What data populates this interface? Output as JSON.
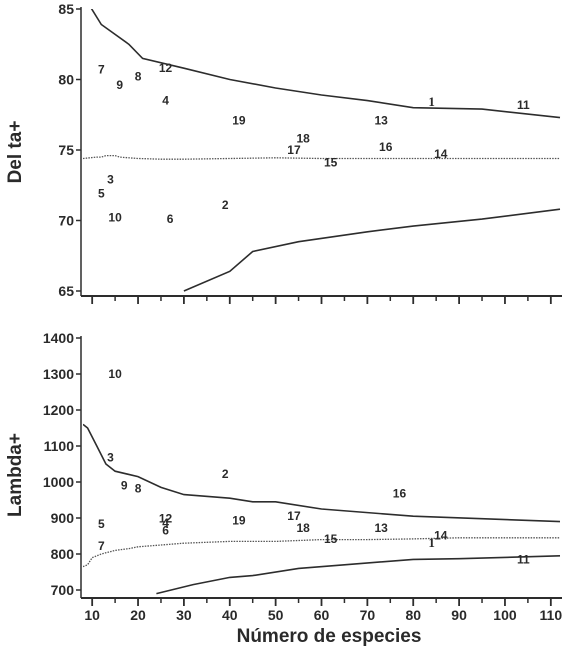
{
  "chart_data": [
    {
      "type": "line",
      "title": "",
      "ylabel": "Del ta+",
      "xlabel": "",
      "xlim": [
        8,
        112
      ],
      "ylim": [
        65,
        86
      ],
      "yticks": [
        65,
        70,
        75,
        80,
        85
      ],
      "xtick_positions": [
        10,
        20,
        30,
        40,
        50,
        60,
        70,
        80,
        90,
        100,
        110
      ],
      "series": [
        {
          "style": "upper",
          "x": [
            8,
            12,
            18,
            21,
            30,
            40,
            50,
            60,
            70,
            80,
            95,
            112
          ],
          "y": [
            86,
            83.9,
            82.5,
            81.5,
            80.8,
            80.0,
            79.4,
            78.9,
            78.5,
            78.0,
            77.9,
            77.3
          ]
        },
        {
          "style": "mean",
          "x": [
            8,
            11,
            12,
            13,
            15,
            16,
            20,
            25,
            30,
            40,
            50,
            60,
            70,
            80,
            90,
            112
          ],
          "y": [
            74.4,
            74.5,
            74.5,
            74.6,
            74.6,
            74.5,
            74.4,
            74.35,
            74.35,
            74.4,
            74.45,
            74.4,
            74.4,
            74.4,
            74.4,
            74.4
          ]
        },
        {
          "style": "lower",
          "x": [
            30,
            40,
            45,
            55,
            70,
            80,
            95,
            112
          ],
          "y": [
            65,
            66.4,
            67.8,
            68.5,
            69.2,
            69.6,
            70.1,
            70.8
          ]
        }
      ],
      "points": [
        {
          "label": "1",
          "x": 84,
          "y": 78.4,
          "serif": true
        },
        {
          "label": "2",
          "x": 39,
          "y": 71.1
        },
        {
          "label": "3",
          "x": 14,
          "y": 72.9
        },
        {
          "label": "4",
          "x": 26,
          "y": 78.5
        },
        {
          "label": "5",
          "x": 12,
          "y": 71.9
        },
        {
          "label": "6",
          "x": 27,
          "y": 70.1
        },
        {
          "label": "7",
          "x": 12,
          "y": 80.7
        },
        {
          "label": "8",
          "x": 20,
          "y": 80.2
        },
        {
          "label": "9",
          "x": 16,
          "y": 79.6
        },
        {
          "label": "10",
          "x": 15,
          "y": 70.2
        },
        {
          "label": "11",
          "x": 104,
          "y": 78.2
        },
        {
          "label": "12",
          "x": 26,
          "y": 80.8
        },
        {
          "label": "13",
          "x": 73,
          "y": 77.1
        },
        {
          "label": "14",
          "x": 86,
          "y": 74.7
        },
        {
          "label": "15",
          "x": 62,
          "y": 74.1
        },
        {
          "label": "16",
          "x": 74,
          "y": 75.2
        },
        {
          "label": "17",
          "x": 54,
          "y": 75.0
        },
        {
          "label": "18",
          "x": 56,
          "y": 75.8
        },
        {
          "label": "19",
          "x": 42,
          "y": 77.1
        }
      ]
    },
    {
      "type": "line",
      "title": "",
      "ylabel": "Lambda+",
      "xlabel": "Número de especies",
      "xlim": [
        8,
        112
      ],
      "ylim": [
        690,
        1400
      ],
      "yticks": [
        700,
        800,
        900,
        1000,
        1100,
        1200,
        1300,
        1400
      ],
      "xticks": [
        10,
        20,
        30,
        40,
        50,
        60,
        70,
        80,
        90,
        100,
        110
      ],
      "series": [
        {
          "style": "upper",
          "x": [
            8,
            9,
            11,
            13,
            15,
            20,
            25,
            30,
            40,
            45,
            50,
            60,
            80,
            112
          ],
          "y": [
            1160,
            1150,
            1100,
            1050,
            1030,
            1015,
            985,
            965,
            955,
            945,
            945,
            925,
            905,
            890
          ]
        },
        {
          "style": "mean",
          "x": [
            8,
            9,
            10,
            12,
            15,
            18,
            20,
            30,
            40,
            50,
            60,
            70,
            80,
            90,
            112
          ],
          "y": [
            765,
            770,
            790,
            800,
            810,
            815,
            820,
            830,
            835,
            835,
            840,
            840,
            842,
            845,
            845
          ]
        },
        {
          "style": "lower",
          "x": [
            24,
            32,
            40,
            45,
            55,
            65,
            80,
            90,
            112
          ],
          "y": [
            690,
            715,
            735,
            740,
            760,
            770,
            785,
            787,
            795
          ]
        }
      ],
      "points": [
        {
          "label": "1",
          "x": 84,
          "y": 830,
          "serif": true
        },
        {
          "label": "2",
          "x": 39,
          "y": 1022
        },
        {
          "label": "3",
          "x": 14,
          "y": 1068
        },
        {
          "label": "4",
          "x": 26,
          "y": 886
        },
        {
          "label": "5",
          "x": 12,
          "y": 883
        },
        {
          "label": "6",
          "x": 26,
          "y": 865
        },
        {
          "label": "7",
          "x": 12,
          "y": 822
        },
        {
          "label": "8",
          "x": 20,
          "y": 982
        },
        {
          "label": "9",
          "x": 17,
          "y": 990
        },
        {
          "label": "10",
          "x": 15,
          "y": 1300
        },
        {
          "label": "11",
          "x": 104,
          "y": 785
        },
        {
          "label": "12",
          "x": 26,
          "y": 898
        },
        {
          "label": "13",
          "x": 73,
          "y": 872
        },
        {
          "label": "14",
          "x": 86,
          "y": 852
        },
        {
          "label": "15",
          "x": 62,
          "y": 842
        },
        {
          "label": "16",
          "x": 77,
          "y": 968
        },
        {
          "label": "17",
          "x": 54,
          "y": 905
        },
        {
          "label": "18",
          "x": 56,
          "y": 872
        },
        {
          "label": "19",
          "x": 42,
          "y": 893
        }
      ]
    }
  ]
}
